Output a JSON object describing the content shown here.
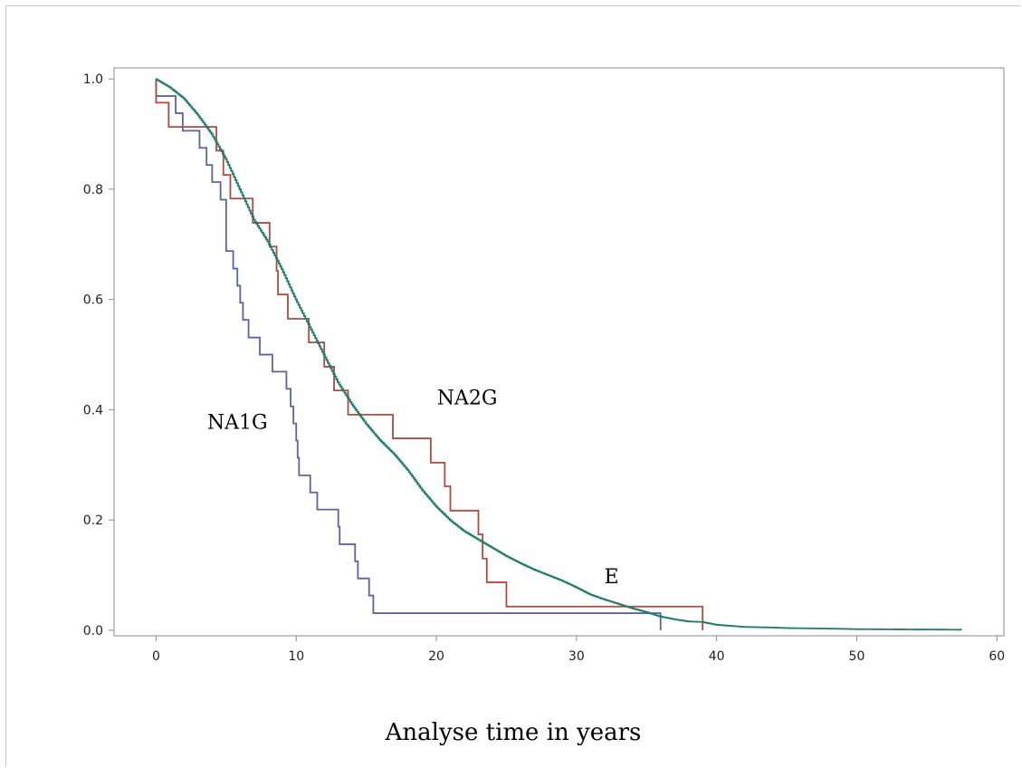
{
  "chart_data": {
    "type": "line",
    "step": true,
    "title": "",
    "xlabel": "Analyse time in years",
    "ylabel": "",
    "xlim": [
      -3,
      60.5
    ],
    "ylim": [
      -0.01,
      1.02
    ],
    "xticks": [
      0,
      10,
      20,
      30,
      40,
      50,
      60
    ],
    "yticks": [
      0.0,
      0.2,
      0.4,
      0.6,
      0.8,
      1.0
    ],
    "xtick_labels": [
      "0",
      "10",
      "20",
      "30",
      "40",
      "50",
      "60"
    ],
    "ytick_labels": [
      "0.0",
      "0.2",
      "0.4",
      "0.6",
      "0.8",
      "1.0"
    ],
    "grid": false,
    "legend": "none (labels placed inline)",
    "series": [
      {
        "name": "NA1G",
        "color": "#5b63a6",
        "points": [
          [
            0,
            1.0
          ],
          [
            0,
            0.969
          ],
          [
            1.4,
            0.969
          ],
          [
            1.4,
            0.938
          ],
          [
            1.9,
            0.938
          ],
          [
            1.9,
            0.906
          ],
          [
            3.1,
            0.906
          ],
          [
            3.1,
            0.875
          ],
          [
            3.6,
            0.875
          ],
          [
            3.6,
            0.844
          ],
          [
            4.0,
            0.844
          ],
          [
            4.0,
            0.813
          ],
          [
            4.6,
            0.813
          ],
          [
            4.6,
            0.781
          ],
          [
            5.0,
            0.781
          ],
          [
            5.0,
            0.688
          ],
          [
            5.5,
            0.688
          ],
          [
            5.5,
            0.656
          ],
          [
            5.8,
            0.656
          ],
          [
            5.8,
            0.625
          ],
          [
            6.0,
            0.625
          ],
          [
            6.0,
            0.594
          ],
          [
            6.2,
            0.594
          ],
          [
            6.2,
            0.563
          ],
          [
            6.6,
            0.563
          ],
          [
            6.6,
            0.531
          ],
          [
            7.4,
            0.531
          ],
          [
            7.4,
            0.5
          ],
          [
            8.3,
            0.5
          ],
          [
            8.3,
            0.469
          ],
          [
            9.3,
            0.469
          ],
          [
            9.3,
            0.438
          ],
          [
            9.6,
            0.438
          ],
          [
            9.6,
            0.406
          ],
          [
            9.8,
            0.406
          ],
          [
            9.8,
            0.375
          ],
          [
            10.0,
            0.375
          ],
          [
            10.0,
            0.344
          ],
          [
            10.1,
            0.344
          ],
          [
            10.1,
            0.313
          ],
          [
            10.2,
            0.313
          ],
          [
            10.2,
            0.281
          ],
          [
            11.0,
            0.281
          ],
          [
            11.0,
            0.25
          ],
          [
            11.5,
            0.25
          ],
          [
            11.5,
            0.219
          ],
          [
            13.0,
            0.219
          ],
          [
            13.0,
            0.188
          ],
          [
            13.1,
            0.188
          ],
          [
            13.1,
            0.156
          ],
          [
            14.2,
            0.156
          ],
          [
            14.2,
            0.125
          ],
          [
            14.4,
            0.125
          ],
          [
            14.4,
            0.094
          ],
          [
            15.2,
            0.094
          ],
          [
            15.2,
            0.063
          ],
          [
            15.5,
            0.063
          ],
          [
            15.5,
            0.031
          ],
          [
            36.0,
            0.031
          ],
          [
            36.0,
            0.0
          ]
        ]
      },
      {
        "name": "NA2G",
        "color": "#b04a3e",
        "points": [
          [
            0,
            1.0
          ],
          [
            0,
            0.957
          ],
          [
            0.9,
            0.957
          ],
          [
            0.9,
            0.913
          ],
          [
            4.3,
            0.913
          ],
          [
            4.3,
            0.87
          ],
          [
            4.8,
            0.87
          ],
          [
            4.8,
            0.826
          ],
          [
            5.3,
            0.826
          ],
          [
            5.3,
            0.783
          ],
          [
            6.9,
            0.783
          ],
          [
            6.9,
            0.739
          ],
          [
            8.1,
            0.739
          ],
          [
            8.1,
            0.696
          ],
          [
            8.6,
            0.696
          ],
          [
            8.6,
            0.652
          ],
          [
            8.7,
            0.652
          ],
          [
            8.7,
            0.609
          ],
          [
            9.4,
            0.609
          ],
          [
            9.4,
            0.565
          ],
          [
            10.9,
            0.565
          ],
          [
            10.9,
            0.522
          ],
          [
            12.0,
            0.522
          ],
          [
            12.0,
            0.478
          ],
          [
            12.7,
            0.478
          ],
          [
            12.7,
            0.435
          ],
          [
            13.7,
            0.435
          ],
          [
            13.7,
            0.391
          ],
          [
            16.9,
            0.391
          ],
          [
            16.9,
            0.348
          ],
          [
            19.6,
            0.348
          ],
          [
            19.6,
            0.304
          ],
          [
            20.6,
            0.304
          ],
          [
            20.6,
            0.261
          ],
          [
            21.0,
            0.261
          ],
          [
            21.0,
            0.217
          ],
          [
            23.0,
            0.217
          ],
          [
            23.0,
            0.174
          ],
          [
            23.3,
            0.174
          ],
          [
            23.3,
            0.13
          ],
          [
            23.6,
            0.13
          ],
          [
            23.6,
            0.087
          ],
          [
            25.0,
            0.087
          ],
          [
            25.0,
            0.043
          ],
          [
            39.0,
            0.043
          ],
          [
            39.0,
            0.0
          ]
        ]
      },
      {
        "name": "E",
        "color": "#1e7c6c",
        "points": [
          [
            0,
            1.0
          ],
          [
            1,
            0.985
          ],
          [
            2,
            0.965
          ],
          [
            3,
            0.935
          ],
          [
            4,
            0.9
          ],
          [
            5,
            0.855
          ],
          [
            6,
            0.8
          ],
          [
            7,
            0.745
          ],
          [
            8,
            0.705
          ],
          [
            9,
            0.655
          ],
          [
            10,
            0.6
          ],
          [
            11,
            0.55
          ],
          [
            12,
            0.5
          ],
          [
            13,
            0.45
          ],
          [
            14,
            0.41
          ],
          [
            15,
            0.375
          ],
          [
            16,
            0.345
          ],
          [
            17,
            0.32
          ],
          [
            18,
            0.29
          ],
          [
            19,
            0.255
          ],
          [
            20,
            0.225
          ],
          [
            21,
            0.2
          ],
          [
            22,
            0.18
          ],
          [
            23,
            0.165
          ],
          [
            24,
            0.15
          ],
          [
            25,
            0.135
          ],
          [
            26,
            0.122
          ],
          [
            27,
            0.11
          ],
          [
            28,
            0.1
          ],
          [
            29,
            0.09
          ],
          [
            30,
            0.078
          ],
          [
            31,
            0.065
          ],
          [
            32,
            0.056
          ],
          [
            33,
            0.048
          ],
          [
            34,
            0.04
          ],
          [
            35,
            0.033
          ],
          [
            36,
            0.025
          ],
          [
            37,
            0.02
          ],
          [
            38,
            0.016
          ],
          [
            39,
            0.015
          ],
          [
            40,
            0.01
          ],
          [
            41,
            0.008
          ],
          [
            42,
            0.006
          ],
          [
            44,
            0.005
          ],
          [
            45,
            0.004
          ],
          [
            48,
            0.003
          ],
          [
            50,
            0.002
          ],
          [
            57.5,
            0.001
          ]
        ]
      }
    ],
    "annotations": [
      {
        "text": "NA1G",
        "x": 5.8,
        "y": 0.365
      },
      {
        "text": "NA2G",
        "x": 22.2,
        "y": 0.41
      },
      {
        "text": "E",
        "x": 32.5,
        "y": 0.085
      }
    ]
  }
}
